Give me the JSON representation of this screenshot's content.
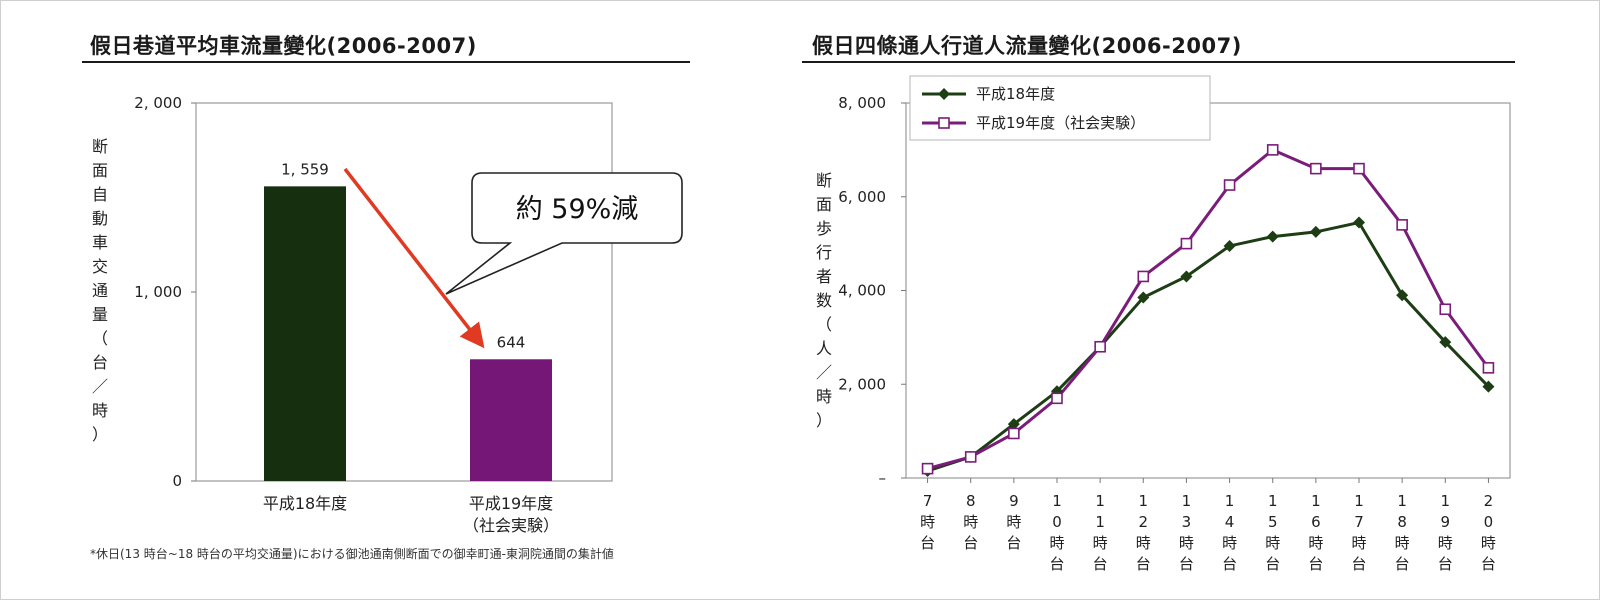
{
  "chart_data": [
    {
      "type": "bar",
      "title": "假日巷道平均車流量變化(2006-2007)",
      "ylabel": "断面自動車交通量（台／時）",
      "categories": [
        "平成18年度",
        "平成19年度\n（社会実験）"
      ],
      "values": [
        1559,
        644
      ],
      "value_labels": [
        "1, 559",
        "644"
      ],
      "colors": [
        "#16300f",
        "#741777"
      ],
      "ylim": [
        0,
        2000
      ],
      "yticks": [
        "0",
        "1, 000",
        "2, 000"
      ],
      "annotation": "約 59%減",
      "footnote": "*休日(13 時台~18 時台の平均交通量)における御池通南側断面での御幸町通-東洞院通間の集計値"
    },
    {
      "type": "line",
      "title": "假日四條通人行道人流量變化(2006-2007)",
      "ylabel": "断面歩行者数（人／時）",
      "ylim": [
        0,
        8000
      ],
      "yticks": [
        "–",
        "2, 000",
        "4, 000",
        "6, 000",
        "8, 000"
      ],
      "categories": [
        "7\n時\n台",
        "8\n時\n台",
        "9\n時\n台",
        "1\n0\n時\n台",
        "1\n1\n時\n台",
        "1\n2\n時\n台",
        "1\n3\n時\n台",
        "1\n4\n時\n台",
        "1\n5\n時\n台",
        "1\n6\n時\n台",
        "1\n7\n時\n台",
        "1\n8\n時\n台",
        "1\n9\n時\n台",
        "2\n0\n時\n台"
      ],
      "legend_position": "top-left",
      "series": [
        {
          "name": "平成18年度",
          "color": "#1d3d14",
          "marker": "diamond-filled",
          "values": [
            150,
            450,
            1150,
            1850,
            2800,
            3850,
            4300,
            4950,
            5150,
            5250,
            5450,
            3900,
            2900,
            1950
          ]
        },
        {
          "name": "平成19年度（社会実験）",
          "color": "#7a1d7a",
          "marker": "square-open",
          "values": [
            200,
            450,
            950,
            1700,
            2800,
            4300,
            5000,
            6250,
            7000,
            6600,
            6600,
            5400,
            3600,
            2350
          ]
        }
      ]
    }
  ]
}
